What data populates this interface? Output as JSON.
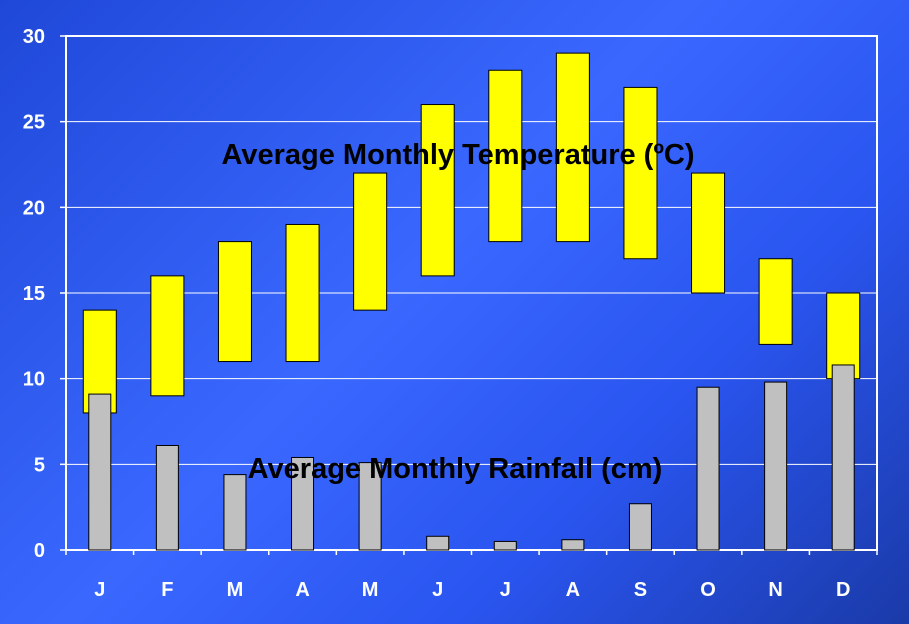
{
  "chart_data": {
    "type": "bar",
    "categories": [
      "J",
      "F",
      "M",
      "A",
      "M",
      "J",
      "J",
      "A",
      "S",
      "O",
      "N",
      "D"
    ],
    "series": [
      {
        "name": "Average Monthly Temperature (ºC)",
        "kind": "floating-range",
        "low": [
          8,
          9,
          11,
          11,
          14,
          16,
          18,
          18,
          17,
          15,
          12,
          10
        ],
        "high": [
          14,
          16,
          18,
          19,
          22,
          26,
          28,
          29,
          27,
          22,
          17,
          15
        ],
        "color": "#ffff00"
      },
      {
        "name": "Average Monthly Rainfall (cm)",
        "kind": "bar",
        "values": [
          9.1,
          6.1,
          4.4,
          5.4,
          5.1,
          0.8,
          0.5,
          0.6,
          2.7,
          9.5,
          9.8,
          10.8
        ],
        "color": "#c0c0c0"
      }
    ],
    "yticks": [
      "0",
      "5",
      "10",
      "15",
      "20",
      "25",
      "30"
    ],
    "ylim": [
      0,
      30
    ],
    "grid": true,
    "annotations": {
      "temperature": "Average Monthly Temperature (ºC)",
      "rainfall": "Average Monthly Rainfall (cm)"
    }
  }
}
